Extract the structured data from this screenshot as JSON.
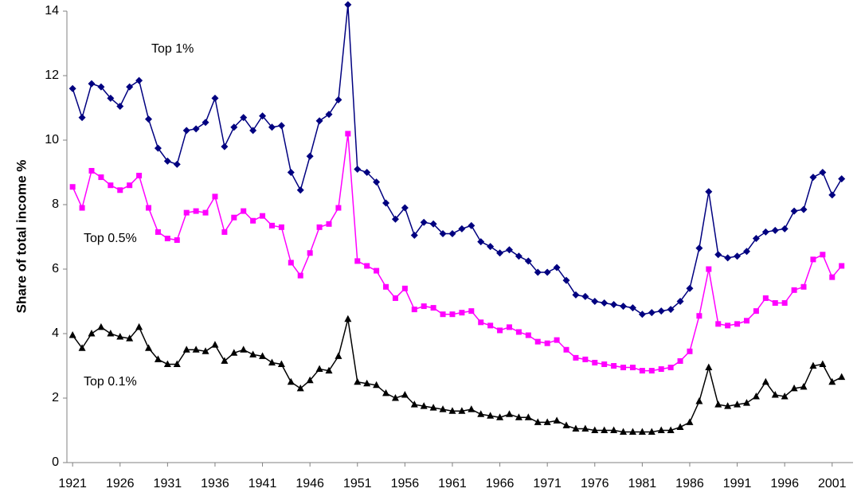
{
  "chart_data": {
    "type": "line",
    "y_label": "Share of total income %",
    "x": [
      1921,
      1922,
      1923,
      1924,
      1925,
      1926,
      1927,
      1928,
      1929,
      1930,
      1931,
      1932,
      1933,
      1934,
      1935,
      1936,
      1937,
      1938,
      1939,
      1940,
      1941,
      1942,
      1943,
      1944,
      1945,
      1946,
      1947,
      1948,
      1949,
      1950,
      1951,
      1952,
      1953,
      1954,
      1955,
      1956,
      1957,
      1958,
      1959,
      1960,
      1961,
      1962,
      1963,
      1964,
      1965,
      1966,
      1967,
      1968,
      1969,
      1970,
      1971,
      1972,
      1973,
      1974,
      1975,
      1976,
      1977,
      1978,
      1979,
      1980,
      1981,
      1982,
      1983,
      1984,
      1985,
      1986,
      1987,
      1988,
      1989,
      1990,
      1991,
      1992,
      1993,
      1994,
      1995,
      1996,
      1997,
      1998,
      1999,
      2000,
      2001,
      2002
    ],
    "xlim": [
      1920.4,
      2003.2
    ],
    "xticks": [
      1921,
      1926,
      1931,
      1936,
      1941,
      1946,
      1951,
      1956,
      1961,
      1966,
      1971,
      1976,
      1981,
      1986,
      1991,
      1996,
      2001
    ],
    "ylim": [
      0,
      14
    ],
    "yticks": [
      0,
      2,
      4,
      6,
      8,
      10,
      12,
      14
    ],
    "grid": false,
    "series": [
      {
        "name": "Top 1%",
        "color": "#000080",
        "marker": "diamond",
        "values": [
          11.6,
          10.7,
          11.75,
          11.65,
          11.3,
          11.05,
          11.65,
          11.85,
          10.65,
          9.75,
          9.35,
          9.25,
          10.3,
          10.35,
          10.55,
          11.3,
          9.8,
          10.4,
          10.7,
          10.3,
          10.75,
          10.4,
          10.45,
          9.0,
          8.45,
          9.5,
          10.6,
          10.8,
          11.25,
          14.2,
          9.1,
          9.0,
          8.7,
          8.05,
          7.55,
          7.9,
          7.05,
          7.45,
          7.4,
          7.1,
          7.1,
          7.25,
          7.35,
          6.85,
          6.7,
          6.5,
          6.6,
          6.4,
          6.25,
          5.9,
          5.9,
          6.05,
          5.65,
          5.2,
          5.15,
          5.0,
          4.95,
          4.9,
          4.85,
          4.8,
          4.6,
          4.65,
          4.7,
          4.75,
          5.0,
          5.4,
          6.65,
          8.4,
          6.45,
          6.35,
          6.4,
          6.55,
          6.95,
          7.15,
          7.2,
          7.25,
          7.8,
          7.85,
          8.85,
          9.0,
          8.3,
          8.8
        ]
      },
      {
        "name": "Top 0.5%",
        "color": "#ff00ff",
        "marker": "square",
        "values": [
          8.55,
          7.9,
          9.05,
          8.85,
          8.6,
          8.45,
          8.6,
          8.9,
          7.9,
          7.15,
          6.95,
          6.9,
          7.75,
          7.8,
          7.75,
          8.25,
          7.15,
          7.6,
          7.8,
          7.5,
          7.65,
          7.35,
          7.3,
          6.2,
          5.8,
          6.5,
          7.3,
          7.4,
          7.9,
          10.2,
          6.25,
          6.1,
          5.95,
          5.45,
          5.1,
          5.4,
          4.75,
          4.85,
          4.8,
          4.6,
          4.6,
          4.65,
          4.7,
          4.35,
          4.25,
          4.1,
          4.2,
          4.05,
          3.95,
          3.75,
          3.7,
          3.8,
          3.5,
          3.25,
          3.2,
          3.1,
          3.05,
          3.0,
          2.95,
          2.95,
          2.85,
          2.85,
          2.9,
          2.95,
          3.15,
          3.45,
          4.55,
          6.0,
          4.3,
          4.25,
          4.3,
          4.4,
          4.7,
          5.1,
          4.95,
          4.95,
          5.35,
          5.45,
          6.3,
          6.45,
          5.75,
          6.1
        ]
      },
      {
        "name": "Top 0.1%",
        "color": "#000000",
        "marker": "triangle",
        "values": [
          3.95,
          3.55,
          4.0,
          4.2,
          4.0,
          3.9,
          3.85,
          4.2,
          3.55,
          3.2,
          3.05,
          3.05,
          3.5,
          3.5,
          3.45,
          3.65,
          3.15,
          3.4,
          3.5,
          3.35,
          3.3,
          3.1,
          3.05,
          2.5,
          2.3,
          2.55,
          2.9,
          2.85,
          3.3,
          4.45,
          2.5,
          2.45,
          2.4,
          2.15,
          2.0,
          2.1,
          1.8,
          1.75,
          1.7,
          1.65,
          1.6,
          1.6,
          1.65,
          1.5,
          1.45,
          1.4,
          1.5,
          1.4,
          1.4,
          1.25,
          1.25,
          1.3,
          1.15,
          1.05,
          1.05,
          1.0,
          1.0,
          1.0,
          0.95,
          0.95,
          0.95,
          0.95,
          1.0,
          1.0,
          1.1,
          1.25,
          1.9,
          2.95,
          1.8,
          1.75,
          1.8,
          1.85,
          2.05,
          2.5,
          2.1,
          2.05,
          2.3,
          2.35,
          3.0,
          3.05,
          2.5,
          2.65
        ]
      }
    ]
  }
}
